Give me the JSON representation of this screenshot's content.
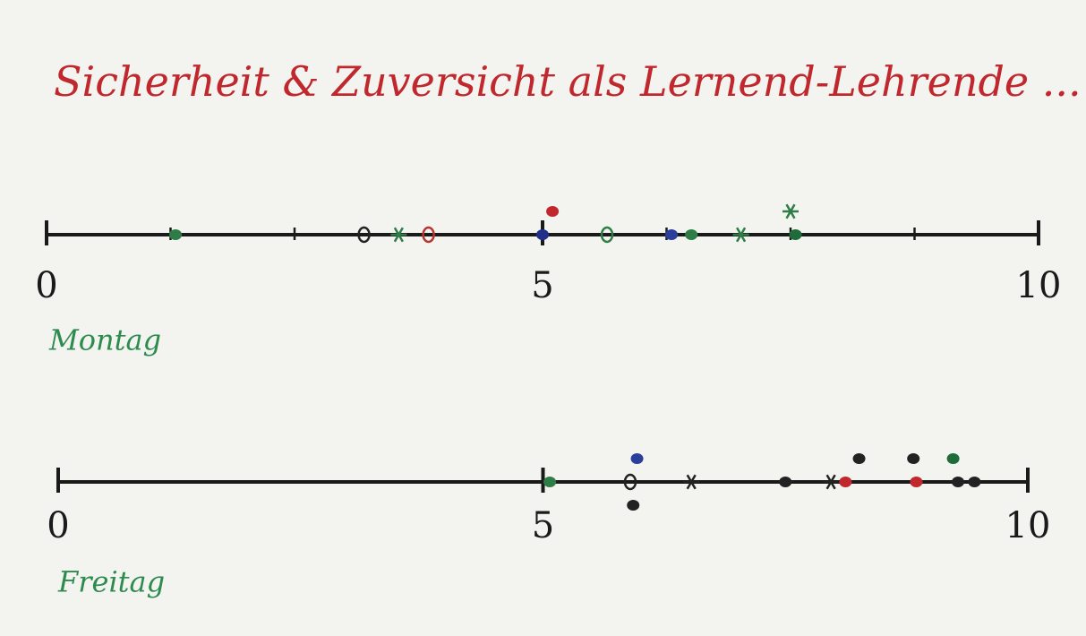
{
  "title": "Sicherheit & Zuversicht als Lernend-Lehrende ...",
  "chart_data": [
    {
      "type": "strip",
      "label": "Montag",
      "xlim": [
        0,
        10
      ],
      "xticks": [
        0,
        5,
        10
      ],
      "minor_xticks": [
        1.25,
        2.5,
        6.25,
        7.5,
        8.75
      ],
      "values": [
        1.3,
        3.2,
        3.55,
        3.85,
        5.0,
        5.1,
        5.65,
        6.3,
        6.5,
        7.0,
        7.55,
        7.5
      ],
      "colors": [
        "#2e7d46",
        "#222222",
        "#2e7d46",
        "#b8342f",
        "#1f2f8a",
        "#c0282d",
        "#2e7d46",
        "#2b3f9a",
        "#2e7d46",
        "#2e7d46",
        "#1f6b3a",
        "#2e7d46"
      ],
      "markers": [
        "dot",
        "circle",
        "asterisk",
        "circle",
        "dot",
        "dot",
        "circle",
        "dot",
        "dot",
        "asterisk",
        "dot",
        "asterisk"
      ]
    },
    {
      "type": "strip",
      "label": "Freitag",
      "xlim": [
        0,
        10
      ],
      "xticks": [
        0,
        5,
        10
      ],
      "minor_xticks": [],
      "values": [
        5.07,
        5.9,
        5.97,
        5.93,
        6.53,
        7.5,
        7.97,
        8.12,
        8.26,
        8.85,
        8.82,
        9.45,
        9.28,
        9.23
      ],
      "colors": [
        "#2e7d46",
        "#222222",
        "#2b3f9a",
        "#222222",
        "#222222",
        "#222222",
        "#222222",
        "#c0282d",
        "#222222",
        "#c0282d",
        "#222222",
        "#222222",
        "#222222",
        "#1f6b3a"
      ],
      "markers": [
        "dot",
        "circle",
        "dot",
        "dot",
        "asterisk",
        "dot",
        "asterisk",
        "dot",
        "dot",
        "dot",
        "dot",
        "dot",
        "dot",
        "dot"
      ]
    }
  ]
}
